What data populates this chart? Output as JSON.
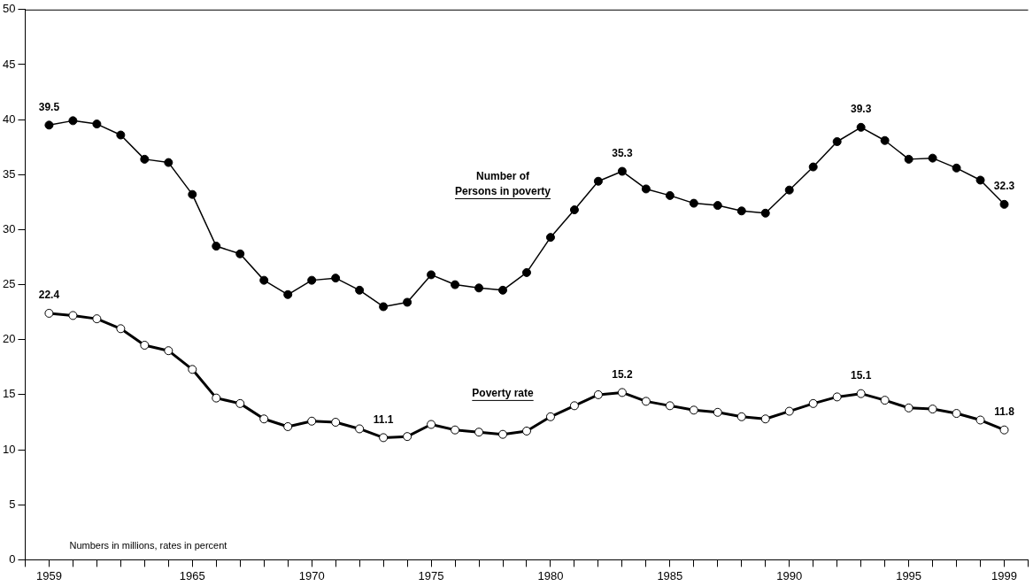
{
  "chart_data": {
    "type": "line",
    "x": [
      1959,
      1960,
      1961,
      1962,
      1963,
      1964,
      1965,
      1966,
      1967,
      1968,
      1969,
      1970,
      1971,
      1972,
      1973,
      1974,
      1975,
      1976,
      1977,
      1978,
      1979,
      1980,
      1981,
      1982,
      1983,
      1984,
      1985,
      1986,
      1987,
      1988,
      1989,
      1990,
      1991,
      1992,
      1993,
      1994,
      1995,
      1996,
      1997,
      1998,
      1999
    ],
    "series": [
      {
        "name": "Number of\nPersons in poverty",
        "color": "#000000",
        "values": [
          39.5,
          39.9,
          39.6,
          38.6,
          36.4,
          36.1,
          33.2,
          28.5,
          27.8,
          25.4,
          24.1,
          25.4,
          25.6,
          24.5,
          23.0,
          23.4,
          25.9,
          25.0,
          24.7,
          24.5,
          26.1,
          29.3,
          31.8,
          34.4,
          35.3,
          33.7,
          33.1,
          32.4,
          32.2,
          31.7,
          31.5,
          33.6,
          35.7,
          38.0,
          39.3,
          38.1,
          36.4,
          36.5,
          35.6,
          34.5,
          32.3
        ],
        "value_labels": [
          "39.5",
          null,
          null,
          null,
          null,
          null,
          null,
          null,
          null,
          null,
          null,
          null,
          null,
          null,
          null,
          null,
          null,
          null,
          null,
          null,
          null,
          null,
          null,
          null,
          "35.3",
          null,
          null,
          null,
          null,
          null,
          null,
          null,
          null,
          null,
          "39.3",
          null,
          null,
          null,
          null,
          null,
          "32.3"
        ]
      },
      {
        "name": "Poverty rate",
        "color": "#000000",
        "values": [
          22.4,
          22.2,
          21.9,
          21.0,
          19.5,
          19.0,
          17.3,
          14.7,
          14.2,
          12.8,
          12.1,
          12.6,
          12.5,
          11.9,
          11.1,
          11.2,
          12.3,
          11.8,
          11.6,
          11.4,
          11.7,
          13.0,
          14.0,
          15.0,
          15.2,
          14.4,
          14.0,
          13.6,
          13.4,
          13.0,
          12.8,
          13.5,
          14.2,
          14.8,
          15.1,
          14.5,
          13.8,
          13.7,
          13.3,
          12.7,
          11.8
        ],
        "value_labels": [
          "22.4",
          null,
          null,
          null,
          null,
          null,
          null,
          null,
          null,
          null,
          null,
          null,
          null,
          null,
          "11.1",
          null,
          null,
          null,
          null,
          null,
          null,
          null,
          null,
          null,
          "15.2",
          null,
          null,
          null,
          null,
          null,
          null,
          null,
          null,
          null,
          "15.1",
          null,
          null,
          null,
          null,
          null,
          "11.8"
        ]
      }
    ],
    "xlim": [
      1958,
      2000
    ],
    "xticks": [
      {
        "value": 1958,
        "label": null
      },
      1959,
      {
        "value": 1960,
        "label": null
      },
      {
        "value": 1961,
        "label": null
      },
      {
        "value": 1962,
        "label": null
      },
      {
        "value": 1963,
        "label": null
      },
      {
        "value": 1964,
        "label": null
      },
      1965,
      {
        "value": 1966,
        "label": null
      },
      {
        "value": 1967,
        "label": null
      },
      {
        "value": 1968,
        "label": null
      },
      {
        "value": 1969,
        "label": null
      },
      1970,
      {
        "value": 1971,
        "label": null
      },
      {
        "value": 1972,
        "label": null
      },
      {
        "value": 1973,
        "label": null
      },
      {
        "value": 1974,
        "label": null
      },
      1975,
      {
        "value": 1976,
        "label": null
      },
      {
        "value": 1977,
        "label": null
      },
      {
        "value": 1978,
        "label": null
      },
      {
        "value": 1979,
        "label": null
      },
      1980,
      {
        "value": 1981,
        "label": null
      },
      {
        "value": 1982,
        "label": null
      },
      {
        "value": 1983,
        "label": null
      },
      {
        "value": 1984,
        "label": null
      },
      1985,
      {
        "value": 1986,
        "label": null
      },
      {
        "value": 1987,
        "label": null
      },
      {
        "value": 1988,
        "label": null
      },
      {
        "value": 1989,
        "label": null
      },
      1990,
      {
        "value": 1991,
        "label": null
      },
      {
        "value": 1992,
        "label": null
      },
      {
        "value": 1993,
        "label": null
      },
      {
        "value": 1994,
        "label": null
      },
      1995,
      {
        "value": 1996,
        "label": null
      },
      {
        "value": 1997,
        "label": null
      },
      {
        "value": 1998,
        "label": null
      },
      1999,
      {
        "value": 2000,
        "label": null
      }
    ],
    "ylim": [
      0,
      50
    ],
    "yticks": [
      0,
      5,
      10,
      15,
      20,
      25,
      30,
      35,
      40,
      45,
      50
    ],
    "marker": "circle",
    "grid": false,
    "legend": false,
    "annotations": [
      "Numbers in millions, rates in percent"
    ]
  }
}
